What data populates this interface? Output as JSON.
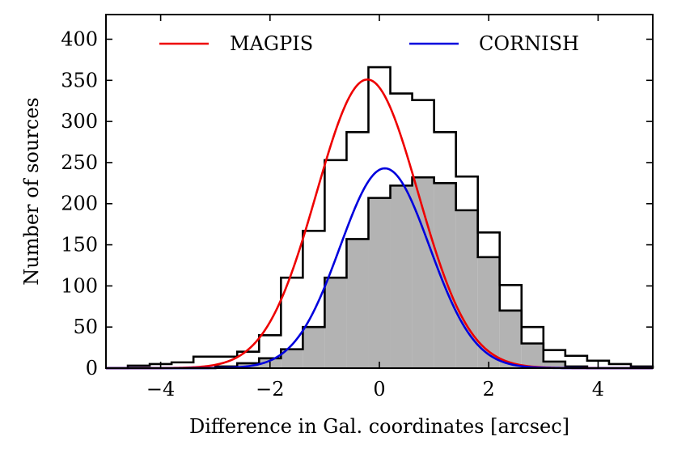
{
  "chart_data": {
    "type": "histogram",
    "xlabel": "Difference in Gal. coordinates [arcsec]",
    "ylabel": "Number of sources",
    "xlim": [
      -5,
      5
    ],
    "ylim": [
      0,
      430
    ],
    "x_ticks": [
      -4,
      -2,
      0,
      2,
      4
    ],
    "x_tick_labels": [
      "−4",
      "−2",
      "0",
      "2",
      "4"
    ],
    "y_ticks": [
      0,
      50,
      100,
      150,
      200,
      250,
      300,
      350,
      400
    ],
    "y_tick_labels": [
      "0",
      "50",
      "100",
      "150",
      "200",
      "250",
      "300",
      "350",
      "400"
    ],
    "legend_position": "top",
    "bin_edges": [
      -5.0,
      -4.6,
      -4.2,
      -3.8,
      -3.4,
      -3.0,
      -2.6,
      -2.2,
      -1.8,
      -1.4,
      -1.0,
      -0.6,
      -0.2,
      0.2,
      0.6,
      1.0,
      1.4,
      1.8,
      2.2,
      2.6,
      3.0,
      3.4,
      3.8,
      4.2,
      4.6,
      5.0
    ],
    "series": [
      {
        "name": "MAGPIS",
        "style": "step",
        "color": "#000000",
        "counts": [
          0,
          3,
          5,
          7,
          14,
          14,
          20,
          40,
          110,
          167,
          253,
          287,
          366,
          334,
          326,
          287,
          233,
          165,
          101,
          50,
          22,
          15,
          9,
          5,
          2
        ]
      },
      {
        "name": "CORNISH",
        "style": "stepfilled",
        "color": "#000000",
        "fill": "#b3b3b3",
        "counts": [
          0,
          0,
          0,
          0,
          0,
          2,
          6,
          12,
          23,
          50,
          110,
          157,
          207,
          222,
          232,
          225,
          192,
          135,
          70,
          30,
          8,
          2,
          0,
          0,
          0
        ]
      }
    ],
    "fits": [
      {
        "name": "MAGPIS",
        "type": "gaussian",
        "color": "#ee0000",
        "amplitude": 351,
        "mean": -0.22,
        "sigma": 0.93
      },
      {
        "name": "CORNISH",
        "type": "gaussian",
        "color": "#0000dd",
        "amplitude": 243,
        "mean": 0.1,
        "sigma": 0.82
      }
    ]
  }
}
